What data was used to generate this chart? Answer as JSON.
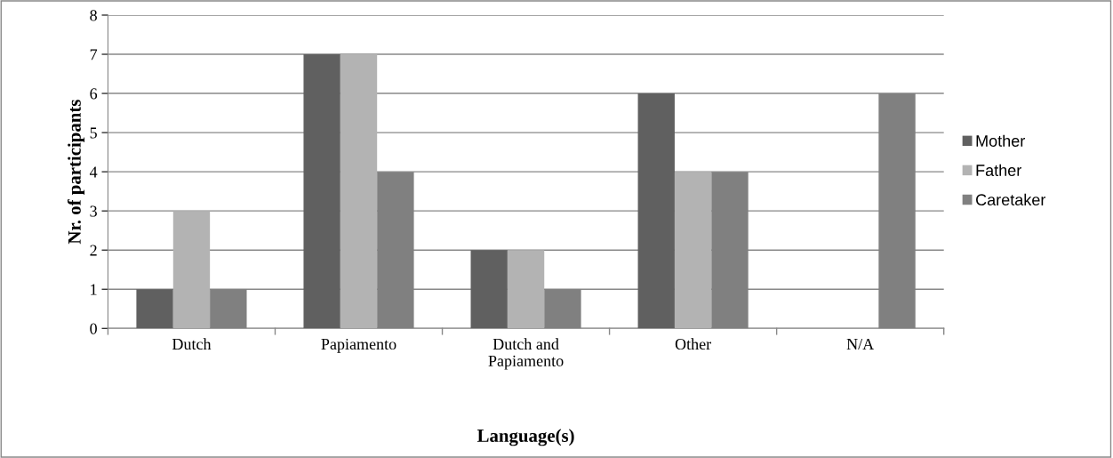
{
  "chart_data": {
    "type": "bar",
    "xlabel": "Language(s)",
    "ylabel": "Nr. of participants",
    "categories": [
      "Dutch",
      "Papiamento",
      "Dutch and\nPapiamento",
      "Other",
      "N/A"
    ],
    "series": [
      {
        "name": "Mother",
        "color": "#606060",
        "values": [
          1,
          7,
          2,
          6,
          0
        ]
      },
      {
        "name": "Father",
        "color": "#b3b3b3",
        "values": [
          3,
          7,
          2,
          4,
          0
        ]
      },
      {
        "name": "Caretaker",
        "color": "#808080",
        "values": [
          1,
          4,
          1,
          4,
          6
        ]
      }
    ],
    "ylim": [
      0,
      8
    ],
    "yticks": [
      0,
      1,
      2,
      3,
      4,
      5,
      6,
      7,
      8
    ],
    "grid": "y",
    "legend": "right"
  }
}
